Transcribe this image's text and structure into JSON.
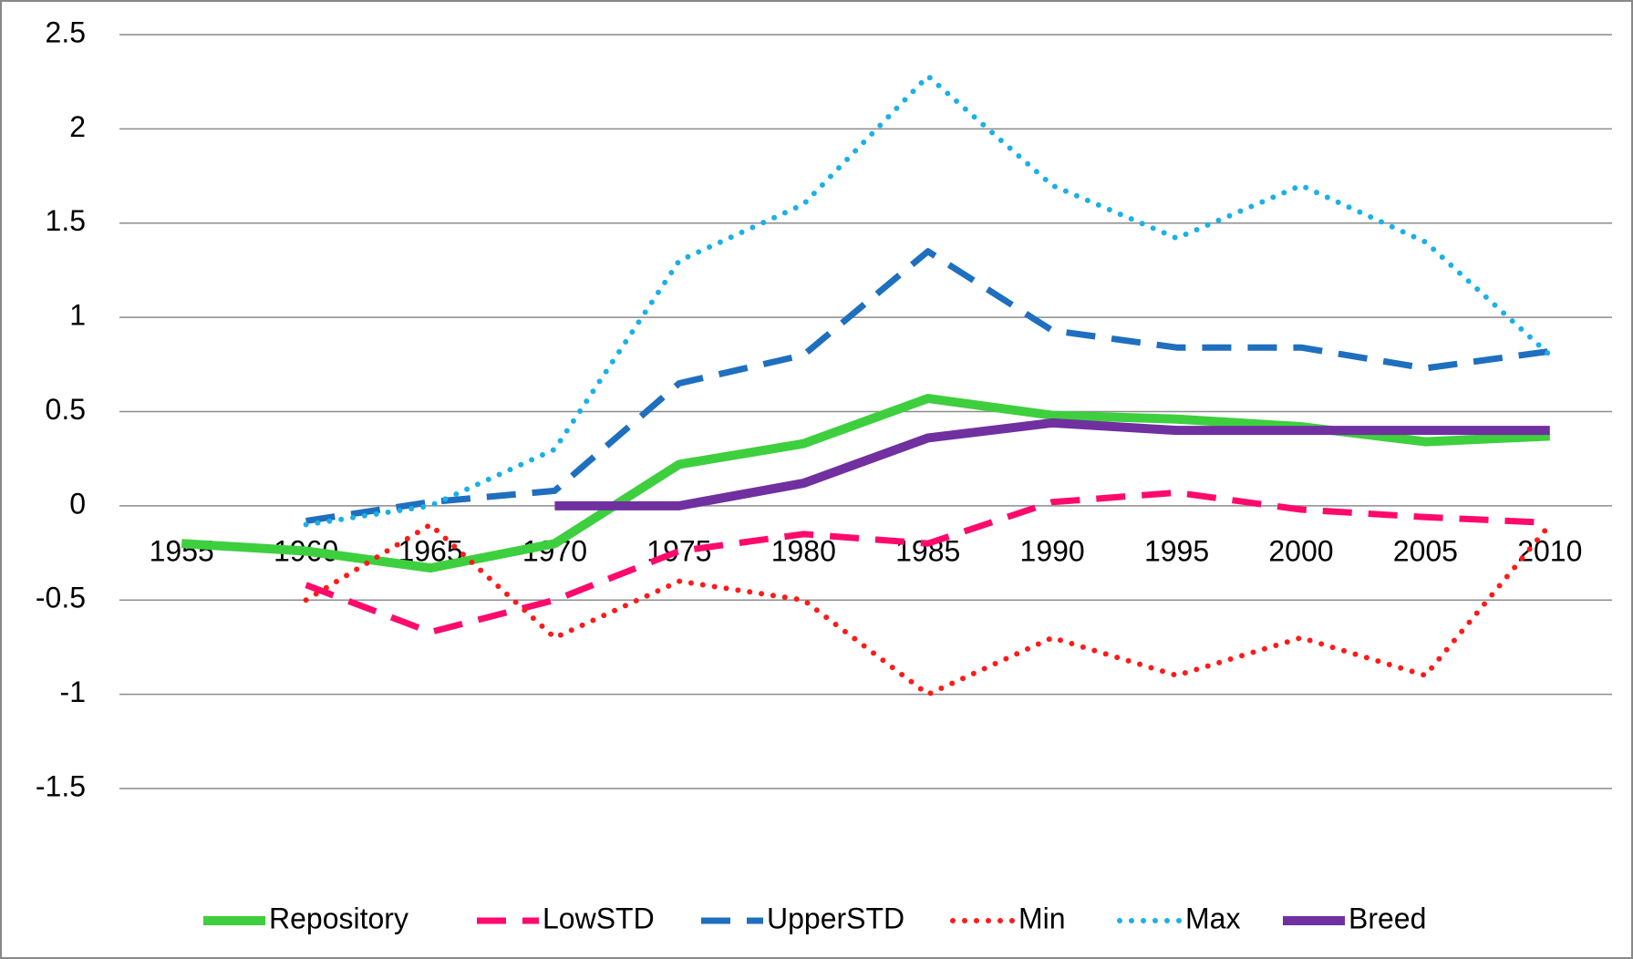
{
  "chart_data": {
    "type": "line",
    "categories": [
      "1955",
      "1960",
      "1965",
      "1970",
      "1975",
      "1980",
      "1985",
      "1990",
      "1995",
      "2000",
      "2005",
      "2010"
    ],
    "ylim": [
      -1.5,
      2.5
    ],
    "yticks": [
      2.5,
      2,
      1.5,
      1,
      0.5,
      0,
      -0.5,
      -1,
      -1.5
    ],
    "grid": true,
    "legend": "bottom",
    "series": [
      {
        "name": "Repository",
        "color": "#3ecf3e",
        "style": "solid",
        "values": [
          -0.2,
          -0.24,
          -0.33,
          -0.2,
          0.22,
          0.33,
          0.57,
          0.48,
          0.46,
          0.42,
          0.34,
          0.37
        ]
      },
      {
        "name": "LowSTD",
        "color": "#ff0a6c",
        "style": "dash",
        "values": [
          null,
          -0.42,
          -0.67,
          -0.5,
          -0.24,
          -0.15,
          -0.2,
          0.02,
          0.07,
          -0.02,
          -0.06,
          -0.09
        ]
      },
      {
        "name": "UpperSTD",
        "color": "#1f6fbf",
        "style": "dash",
        "values": [
          null,
          -0.08,
          0.02,
          0.08,
          0.65,
          0.8,
          1.35,
          0.93,
          0.84,
          0.84,
          0.73,
          0.82
        ]
      },
      {
        "name": "Min",
        "color": "#ff1a1a",
        "style": "dot",
        "values": [
          null,
          -0.5,
          -0.1,
          -0.7,
          -0.4,
          -0.5,
          -1.0,
          -0.7,
          -0.9,
          -0.7,
          -0.9,
          -0.1
        ]
      },
      {
        "name": "Max",
        "color": "#1ab0e8",
        "style": "dot",
        "values": [
          null,
          -0.1,
          0.0,
          0.3,
          1.3,
          1.6,
          2.28,
          1.7,
          1.42,
          1.7,
          1.4,
          0.8
        ]
      },
      {
        "name": "Breed",
        "color": "#7030a0",
        "style": "solid",
        "values": [
          null,
          null,
          null,
          0,
          0,
          0.12,
          0.36,
          0.44,
          0.4,
          0.4,
          0.4,
          0.4
        ]
      }
    ]
  }
}
